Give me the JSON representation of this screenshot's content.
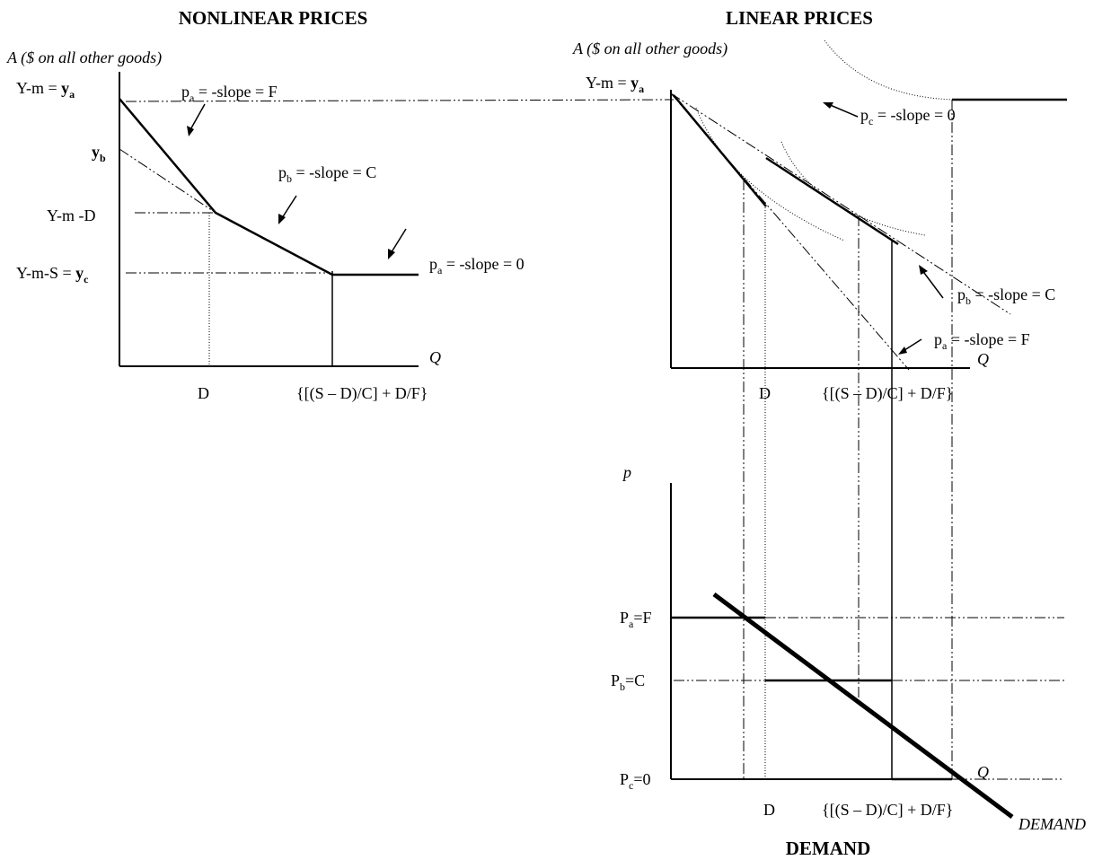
{
  "titles": {
    "left": "NONLINEAR PRICES",
    "right": "LINEAR PRICES",
    "bottom": "DEMAND"
  },
  "axes": {
    "left_y": "A ($  on  all other goods)",
    "right_y": "A ($  on  all other goods)",
    "q": "Q",
    "p": "p"
  },
  "left_labels": {
    "ya_prefix": "Y-m = ",
    "ya_y": "y",
    "ya_sub": "a",
    "yb_y": "y",
    "yb_sub": "b",
    "ymd": "Y-m -D",
    "yc_prefix": "Y-m-S = ",
    "yc_y": "y",
    "yc_sub": "c",
    "pa_f_p": "p",
    "pa_f_sub": "a",
    "pa_f_rest": " = -slope = F",
    "pb_c_p": "p",
    "pb_c_sub": "b",
    "pb_c_rest": " = -slope = C",
    "pa_0_p": "p",
    "pa_0_sub": "a",
    "pa_0_rest": " = -slope = 0",
    "x_d": "D",
    "x_expr": "{[(S – D)/C] + D/F}"
  },
  "right_labels": {
    "ya_prefix": "Y-m = ",
    "ya_y": "y",
    "ya_sub": "a",
    "pc_p": "p",
    "pc_sub": "c",
    "pc_rest": " = -slope = 0",
    "pb_p": "p",
    "pb_sub": "b",
    "pb_rest": " = -slope = C",
    "pa_p": "p",
    "pa_sub": "a",
    "pa_rest": " = -slope = F",
    "x_d": "D",
    "x_expr": "{[(S – D)/C] + D/F}"
  },
  "demand_labels": {
    "pa_P": "P",
    "pa_sub": "a",
    "pa_rest": "=F",
    "pb_P": "P",
    "pb_sub": "b",
    "pb_rest": "=C",
    "pc_P": "P",
    "pc_sub": "c",
    "pc_rest": "=0",
    "x_d": "D",
    "x_expr": "{[(S – D)/C] + D/F}",
    "curve": "DEMAND"
  }
}
